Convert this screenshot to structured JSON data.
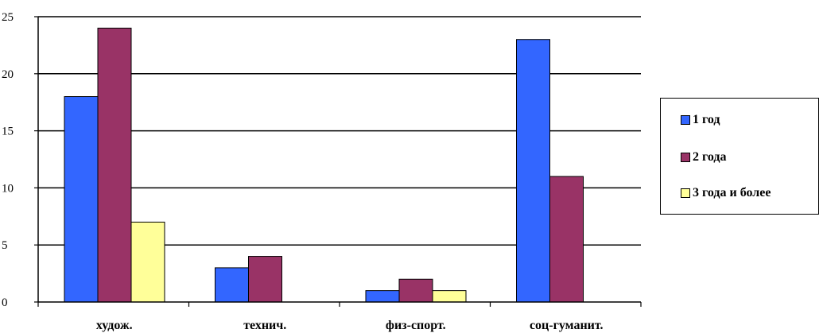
{
  "chart_data": {
    "type": "bar",
    "categories": [
      "худож.",
      "технич.",
      "физ-спорт.",
      "соц-гуманит."
    ],
    "series": [
      {
        "name": "1 год",
        "values": [
          18,
          3,
          1,
          23
        ],
        "color": "#3366ff"
      },
      {
        "name": "2 года",
        "values": [
          24,
          4,
          2,
          11
        ],
        "color": "#993366"
      },
      {
        "name": "3 года и более",
        "values": [
          7,
          0,
          1,
          0
        ],
        "color": "#ffff99"
      }
    ],
    "y_ticks": [
      "0",
      "5",
      "10",
      "15",
      "20",
      "25"
    ],
    "ylim": [
      0,
      25
    ],
    "grid": true,
    "legend_position": "right"
  }
}
